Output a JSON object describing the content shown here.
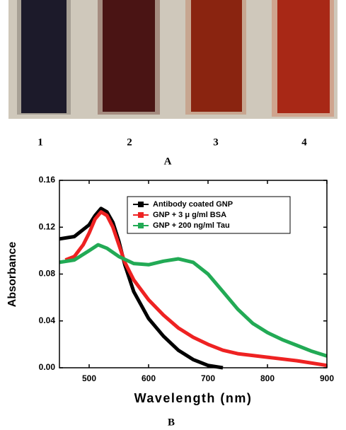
{
  "photo_labels": [
    "1",
    "2",
    "3",
    "4"
  ],
  "panel_a_label": "A",
  "chart_data": {
    "type": "line",
    "xlabel": "Wavelength (nm)",
    "ylabel": "Absorbance",
    "xlim": [
      450,
      900
    ],
    "ylim": [
      0,
      0.16
    ],
    "xticks": [
      500,
      600,
      700,
      800,
      900
    ],
    "yticks": [
      {
        "value": 0,
        "label": "0.00"
      },
      {
        "value": 0.04,
        "label": "0.04"
      },
      {
        "value": 0.08,
        "label": "0.08"
      },
      {
        "value": 0.12,
        "label": "0.12"
      },
      {
        "value": 0.16,
        "label": "0.16"
      }
    ],
    "legend": "upper right",
    "series": [
      {
        "name": "Antibody coated GNP",
        "color": "#000000",
        "x": [
          450,
          475,
          500,
          510,
          520,
          530,
          540,
          550,
          560,
          575,
          600,
          625,
          650,
          675,
          700,
          725
        ],
        "values": [
          0.11,
          0.112,
          0.122,
          0.13,
          0.136,
          0.133,
          0.124,
          0.108,
          0.088,
          0.065,
          0.042,
          0.027,
          0.015,
          0.007,
          0.002,
          0.0
        ]
      },
      {
        "name": "GNP + 3 μ g/ml BSA",
        "color": "#ee2222",
        "x": [
          460,
          475,
          490,
          500,
          510,
          520,
          530,
          540,
          550,
          560,
          575,
          600,
          625,
          650,
          675,
          700,
          725,
          750,
          800,
          850,
          900
        ],
        "values": [
          0.092,
          0.095,
          0.105,
          0.115,
          0.127,
          0.133,
          0.13,
          0.12,
          0.105,
          0.09,
          0.075,
          0.058,
          0.045,
          0.034,
          0.026,
          0.02,
          0.015,
          0.012,
          0.009,
          0.006,
          0.002
        ]
      },
      {
        "name": "GNP + 200 ng/ml Tau",
        "color": "#22aa55",
        "x": [
          450,
          475,
          500,
          515,
          530,
          550,
          575,
          600,
          625,
          650,
          675,
          700,
          725,
          750,
          775,
          800,
          825,
          850,
          875,
          900
        ],
        "values": [
          0.09,
          0.092,
          0.1,
          0.105,
          0.102,
          0.095,
          0.089,
          0.088,
          0.091,
          0.093,
          0.09,
          0.08,
          0.065,
          0.05,
          0.038,
          0.03,
          0.024,
          0.019,
          0.014,
          0.01
        ]
      }
    ]
  },
  "panel_b_label": "B"
}
